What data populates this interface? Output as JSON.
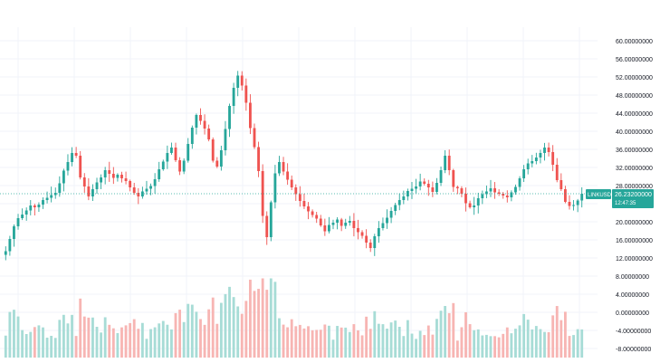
{
  "chart_data": {
    "type": "candlestick",
    "symbol_label": "LINKUSD",
    "last_price_label": "26.23200000",
    "countdown_label": "12:47:35",
    "grid": true,
    "colors": {
      "up": "#26a69a",
      "down": "#ef5350",
      "up_volume": "#a7dcd6",
      "down_volume": "#f7b5b3",
      "grid": "#f0f3fa",
      "axis_text": "#131722",
      "price_line": "#26a69a",
      "price_tag_bg": "#26a69a",
      "price_tag_text": "#ffffff"
    },
    "price_axis": {
      "ticks": [
        "60.00000000",
        "56.00000000",
        "52.00000000",
        "48.00000000",
        "44.00000000",
        "40.00000000",
        "36.00000000",
        "32.00000000",
        "28.00000000",
        "24.00000000",
        "20.00000000",
        "16.00000000",
        "12.00000000"
      ],
      "range": [
        12,
        60
      ]
    },
    "volume_axis": {
      "ticks": [
        "8.00000000",
        "4.00000000",
        "0.00000000",
        "-4.00000000",
        "-8.00000000"
      ],
      "range": [
        -8,
        8
      ]
    },
    "close_series": [
      13.5,
      16.2,
      19,
      20.8,
      21.6,
      22.5,
      23.6,
      23.2,
      23.8,
      24.8,
      25.3,
      25.9,
      26.4,
      28.5,
      31.3,
      33.2,
      35.2,
      34.6,
      29.8,
      27.8,
      25.6,
      27.2,
      28.7,
      29.8,
      31.4,
      30.6,
      29.7,
      30.4,
      29.6,
      29,
      27.6,
      26.4,
      25.6,
      26.7,
      27.3,
      27.9,
      29.4,
      31.6,
      33.3,
      35.2,
      36.4,
      33.6,
      31.1,
      33.5,
      37.2,
      40.8,
      43.6,
      42.3,
      40.6,
      38.2,
      33.5,
      32.2,
      35.8,
      40.5,
      45.6,
      49.6,
      52.3,
      50.1,
      46.3,
      40.7,
      36.5,
      31.2,
      21.3,
      16.6,
      24.3,
      30.7,
      33.2,
      31.1,
      29.3,
      27.6,
      26.1,
      24.6,
      23.4,
      22.3,
      21.5,
      20.7,
      19.2,
      17.9,
      19.3,
      19.8,
      20.5,
      19.1,
      19.8,
      20.2,
      18.6,
      17.7,
      16.9,
      15.4,
      14.2,
      16.8,
      18.6,
      19.7,
      20.9,
      22.4,
      23.7,
      24.8,
      25.6,
      26.8,
      27.3,
      27.8,
      28.9,
      28.4,
      27.6,
      26.6,
      28.6,
      31.4,
      34.6,
      31.4,
      27.7,
      27.4,
      26.2,
      24.1,
      23.2,
      23.6,
      25.2,
      26.1,
      26.7,
      27.4,
      26.5,
      26.2,
      25.8,
      25.4,
      26.5,
      27.7,
      29.6,
      31.6,
      32.9,
      33.4,
      34.2,
      35.2,
      36.4,
      35.4,
      32.6,
      29.2,
      27.2,
      24.4,
      23.5,
      23.7,
      24.7,
      26.2
    ]
  }
}
